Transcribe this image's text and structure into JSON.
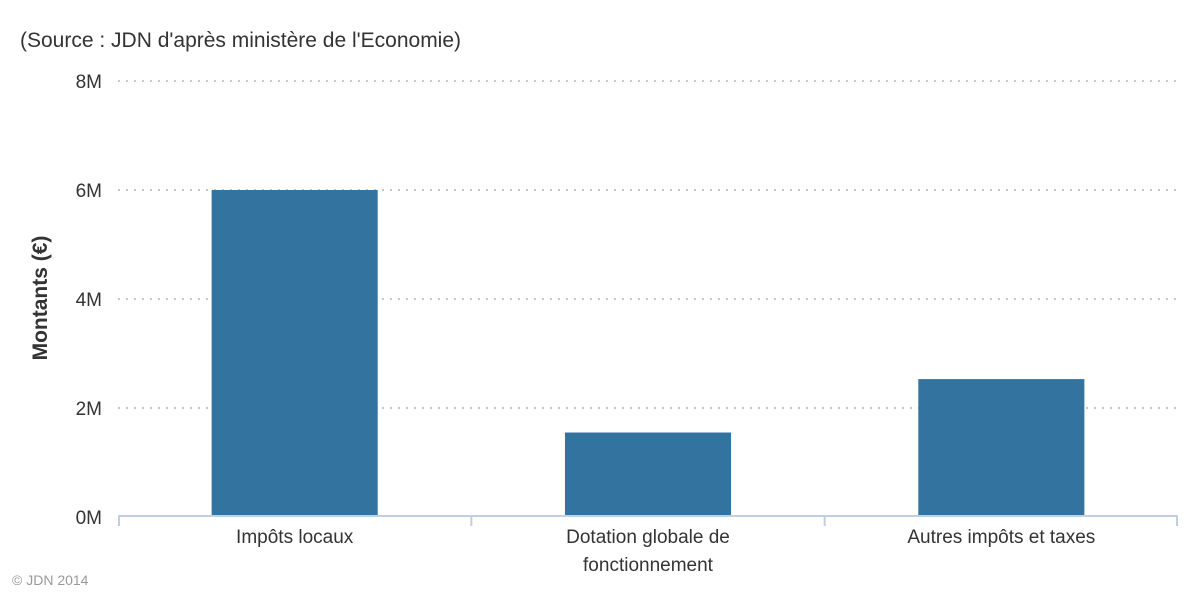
{
  "chart_data": {
    "type": "bar",
    "subtitle": "(Source : JDN d'après ministère de l'Economie)",
    "title": "",
    "ylabel": "Montants (€)",
    "xlabel": "",
    "categories": [
      "Impôts locaux",
      "Dotation globale de fonctionnement",
      "Autres impôts et taxes"
    ],
    "category_label_lines": [
      [
        "Impôts locaux"
      ],
      [
        "Dotation globale de",
        "fonctionnement"
      ],
      [
        "Autres impôts et taxes"
      ]
    ],
    "series": [
      {
        "values": [
          6000000,
          1550000,
          2530000
        ],
        "color": "#33739f"
      }
    ],
    "ylim": [
      0,
      8000000
    ],
    "yticks": [
      0,
      2000000,
      4000000,
      6000000,
      8000000
    ],
    "ytick_labels": [
      "0M",
      "2M",
      "4M",
      "6M",
      "8M"
    ],
    "grid": true,
    "legend": "none"
  },
  "credits": "© JDN 2014",
  "colors": {
    "bar": "#33739f",
    "grid": "#c8c8c8",
    "axis": "#c0d0e0",
    "text": "#333333",
    "credits": "#999999"
  }
}
